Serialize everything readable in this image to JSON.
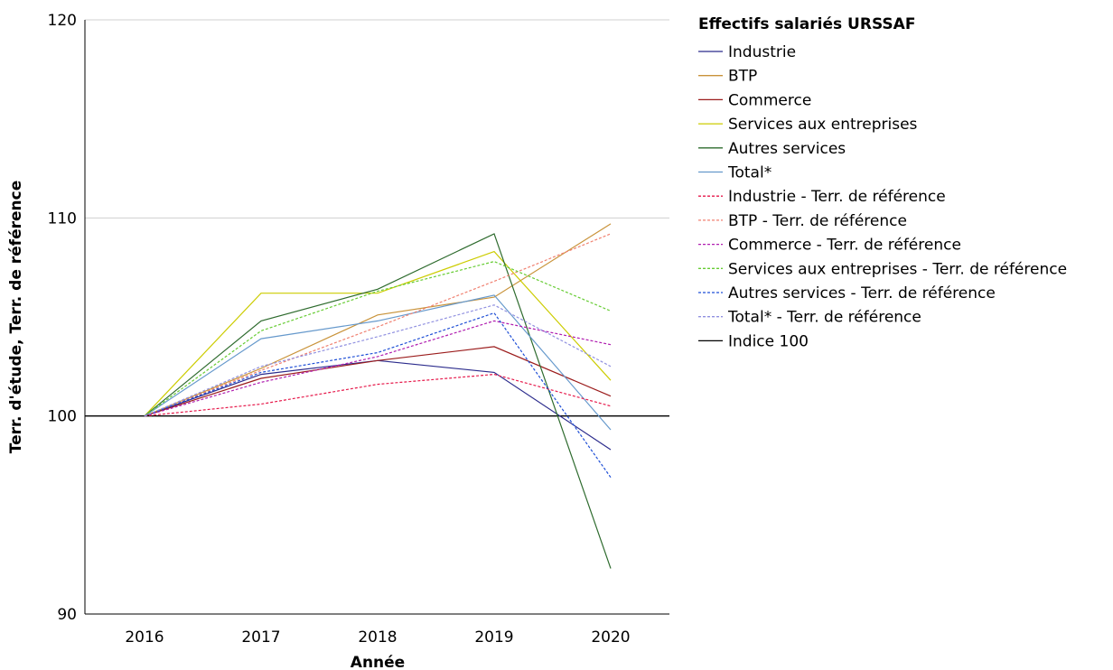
{
  "chart_data": {
    "type": "line",
    "title": "",
    "xlabel": "Année",
    "ylabel": "Terr. d'étude, Terr. de référence",
    "categories": [
      "2016",
      "2017",
      "2018",
      "2019",
      "2020"
    ],
    "ylim": [
      90,
      120
    ],
    "yticks": [
      90,
      100,
      110,
      120
    ],
    "grid": true,
    "legend": {
      "title": "Effectifs salariés URSSAF",
      "position": "right"
    },
    "series": [
      {
        "name": "Industrie",
        "color": "#2b2b8c",
        "dash": "solid",
        "values": [
          100,
          102.1,
          102.8,
          102.2,
          98.3
        ]
      },
      {
        "name": "BTP",
        "color": "#c9933a",
        "dash": "solid",
        "values": [
          100,
          102.4,
          105.1,
          106.0,
          109.7
        ]
      },
      {
        "name": "Commerce",
        "color": "#9b1c1c",
        "dash": "solid",
        "values": [
          100,
          101.9,
          102.8,
          103.5,
          101.0
        ]
      },
      {
        "name": "Services aux entreprises",
        "color": "#cccc00",
        "dash": "solid",
        "values": [
          100,
          106.2,
          106.2,
          108.3,
          101.8
        ]
      },
      {
        "name": "Autres services",
        "color": "#2e6b2e",
        "dash": "solid",
        "values": [
          100,
          104.8,
          106.4,
          109.2,
          92.3
        ]
      },
      {
        "name": "Total*",
        "color": "#6699cc",
        "dash": "solid",
        "values": [
          100,
          103.9,
          104.8,
          106.1,
          99.3
        ]
      },
      {
        "name": "Industrie - Terr. de référence",
        "color": "#e6194b",
        "dash": "dashed",
        "values": [
          100,
          100.6,
          101.6,
          102.1,
          100.5
        ]
      },
      {
        "name": "BTP - Terr. de référence",
        "color": "#f08070",
        "dash": "dashed",
        "values": [
          100,
          102.3,
          104.5,
          106.8,
          109.2
        ]
      },
      {
        "name": "Commerce - Terr. de référence",
        "color": "#b01eb0",
        "dash": "dashed",
        "values": [
          100,
          101.7,
          103.0,
          104.8,
          103.6
        ]
      },
      {
        "name": "Services aux entreprises - Terr. de référence",
        "color": "#66cc33",
        "dash": "dashed",
        "values": [
          100,
          104.3,
          106.3,
          107.8,
          105.3
        ]
      },
      {
        "name": "Autres services - Terr. de référence",
        "color": "#1f4fd6",
        "dash": "dashed",
        "values": [
          100,
          102.2,
          103.2,
          105.2,
          96.9
        ]
      },
      {
        "name": "Total* - Terr. de référence",
        "color": "#9090e0",
        "dash": "dashed",
        "values": [
          100,
          102.5,
          104.0,
          105.6,
          102.5
        ]
      },
      {
        "name": "Indice 100",
        "color": "#000000",
        "dash": "solid",
        "values": [
          100,
          100,
          100,
          100,
          100
        ]
      }
    ]
  }
}
